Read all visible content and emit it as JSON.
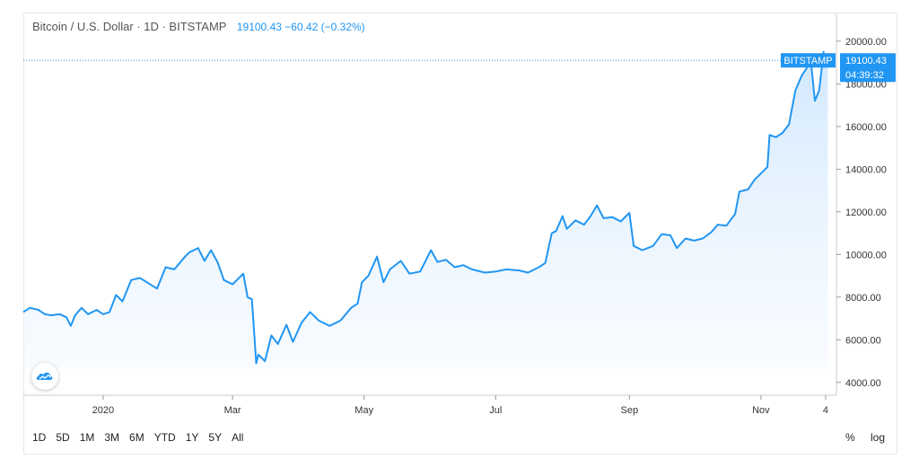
{
  "header": {
    "symbol": "Bitcoin / U.S. Dollar · 1D · BITSTAMP",
    "last": "19100.43",
    "change": "−60.42 (−0.32%)"
  },
  "price_tag": {
    "exchange": "BITSTAMP",
    "price": "19100.43",
    "countdown": "04:39:32"
  },
  "toolbar": {
    "ranges": [
      "1D",
      "5D",
      "1M",
      "3M",
      "6M",
      "YTD",
      "1Y",
      "5Y",
      "All"
    ],
    "percent_label": "%",
    "log_label": "log"
  },
  "colors": {
    "line": "#2196f3",
    "fill_top": "#d6ebfd",
    "axis": "#cccccc",
    "label": "#333333"
  },
  "chart_data": {
    "type": "area",
    "title": "Bitcoin / U.S. Dollar · 1D · BITSTAMP",
    "xlabel": "",
    "ylabel": "",
    "ylim": [
      3400,
      21300
    ],
    "y_ticks": [
      4000,
      6000,
      8000,
      10000,
      12000,
      14000,
      16000,
      18000,
      20000
    ],
    "y_tick_labels": [
      "4000.00",
      "6000.00",
      "8000.00",
      "10000.00",
      "12000.00",
      "14000.00",
      "16000.00",
      "18000.00",
      "20000.00"
    ],
    "x_ticks": [
      "2020-01-01",
      "2020-03-01",
      "2020-05-01",
      "2020-07-01",
      "2020-09-01",
      "2020-11-01",
      "2020-12-01"
    ],
    "x_tick_labels": [
      "2020",
      "Mar",
      "May",
      "Jul",
      "Sep",
      "Nov",
      "4"
    ],
    "last_value": 19100.43,
    "grid": false,
    "series": [
      {
        "values": [
          [
            "2019-11-25",
            7300
          ],
          [
            "2019-11-28",
            7500
          ],
          [
            "2019-12-02",
            7400
          ],
          [
            "2019-12-05",
            7200
          ],
          [
            "2019-12-08",
            7150
          ],
          [
            "2019-12-12",
            7200
          ],
          [
            "2019-12-15",
            7050
          ],
          [
            "2019-12-17",
            6650
          ],
          [
            "2019-12-19",
            7150
          ],
          [
            "2019-12-22",
            7500
          ],
          [
            "2019-12-25",
            7200
          ],
          [
            "2019-12-29",
            7400
          ],
          [
            "2020-01-01",
            7200
          ],
          [
            "2020-01-04",
            7300
          ],
          [
            "2020-01-07",
            8100
          ],
          [
            "2020-01-10",
            7800
          ],
          [
            "2020-01-14",
            8800
          ],
          [
            "2020-01-18",
            8900
          ],
          [
            "2020-01-22",
            8650
          ],
          [
            "2020-01-26",
            8400
          ],
          [
            "2020-01-30",
            9400
          ],
          [
            "2020-02-03",
            9300
          ],
          [
            "2020-02-08",
            9900
          ],
          [
            "2020-02-10",
            10100
          ],
          [
            "2020-02-14",
            10300
          ],
          [
            "2020-02-17",
            9700
          ],
          [
            "2020-02-20",
            10200
          ],
          [
            "2020-02-23",
            9650
          ],
          [
            "2020-02-26",
            8800
          ],
          [
            "2020-03-01",
            8600
          ],
          [
            "2020-03-03",
            8800
          ],
          [
            "2020-03-06",
            9100
          ],
          [
            "2020-03-08",
            8000
          ],
          [
            "2020-03-10",
            7900
          ],
          [
            "2020-03-12",
            4900
          ],
          [
            "2020-03-13",
            5300
          ],
          [
            "2020-03-16",
            5000
          ],
          [
            "2020-03-19",
            6200
          ],
          [
            "2020-03-22",
            5800
          ],
          [
            "2020-03-26",
            6700
          ],
          [
            "2020-03-29",
            5900
          ],
          [
            "2020-04-02",
            6800
          ],
          [
            "2020-04-06",
            7300
          ],
          [
            "2020-04-10",
            6900
          ],
          [
            "2020-04-15",
            6650
          ],
          [
            "2020-04-20",
            6900
          ],
          [
            "2020-04-25",
            7500
          ],
          [
            "2020-04-28",
            7700
          ],
          [
            "2020-04-30",
            8700
          ],
          [
            "2020-05-03",
            9000
          ],
          [
            "2020-05-07",
            9900
          ],
          [
            "2020-05-10",
            8700
          ],
          [
            "2020-05-13",
            9300
          ],
          [
            "2020-05-18",
            9700
          ],
          [
            "2020-05-22",
            9100
          ],
          [
            "2020-05-27",
            9200
          ],
          [
            "2020-06-01",
            10200
          ],
          [
            "2020-06-04",
            9650
          ],
          [
            "2020-06-08",
            9750
          ],
          [
            "2020-06-12",
            9400
          ],
          [
            "2020-06-16",
            9500
          ],
          [
            "2020-06-20",
            9300
          ],
          [
            "2020-06-26",
            9150
          ],
          [
            "2020-07-01",
            9200
          ],
          [
            "2020-07-06",
            9300
          ],
          [
            "2020-07-12",
            9250
          ],
          [
            "2020-07-16",
            9150
          ],
          [
            "2020-07-21",
            9400
          ],
          [
            "2020-07-24",
            9600
          ],
          [
            "2020-07-27",
            11000
          ],
          [
            "2020-07-29",
            11100
          ],
          [
            "2020-08-01",
            11800
          ],
          [
            "2020-08-03",
            11200
          ],
          [
            "2020-08-07",
            11600
          ],
          [
            "2020-08-11",
            11400
          ],
          [
            "2020-08-14",
            11800
          ],
          [
            "2020-08-17",
            12300
          ],
          [
            "2020-08-20",
            11700
          ],
          [
            "2020-08-24",
            11750
          ],
          [
            "2020-08-28",
            11550
          ],
          [
            "2020-09-01",
            11950
          ],
          [
            "2020-09-03",
            10400
          ],
          [
            "2020-09-07",
            10200
          ],
          [
            "2020-09-12",
            10400
          ],
          [
            "2020-09-16",
            10950
          ],
          [
            "2020-09-20",
            10900
          ],
          [
            "2020-09-23",
            10300
          ],
          [
            "2020-09-27",
            10750
          ],
          [
            "2020-10-01",
            10650
          ],
          [
            "2020-10-05",
            10750
          ],
          [
            "2020-10-09",
            11050
          ],
          [
            "2020-10-12",
            11400
          ],
          [
            "2020-10-16",
            11350
          ],
          [
            "2020-10-20",
            11900
          ],
          [
            "2020-10-22",
            12950
          ],
          [
            "2020-10-26",
            13050
          ],
          [
            "2020-10-29",
            13500
          ],
          [
            "2020-11-01",
            13800
          ],
          [
            "2020-11-04",
            14100
          ],
          [
            "2020-11-05",
            15600
          ],
          [
            "2020-11-08",
            15500
          ],
          [
            "2020-11-11",
            15700
          ],
          [
            "2020-11-14",
            16100
          ],
          [
            "2020-11-17",
            17700
          ],
          [
            "2020-11-20",
            18400
          ],
          [
            "2020-11-22",
            18700
          ],
          [
            "2020-11-24",
            19200
          ],
          [
            "2020-11-26",
            17200
          ],
          [
            "2020-11-28",
            17700
          ],
          [
            "2020-11-30",
            19500
          ],
          [
            "2020-12-01",
            18800
          ],
          [
            "2020-12-02",
            19100.43
          ]
        ]
      }
    ]
  }
}
